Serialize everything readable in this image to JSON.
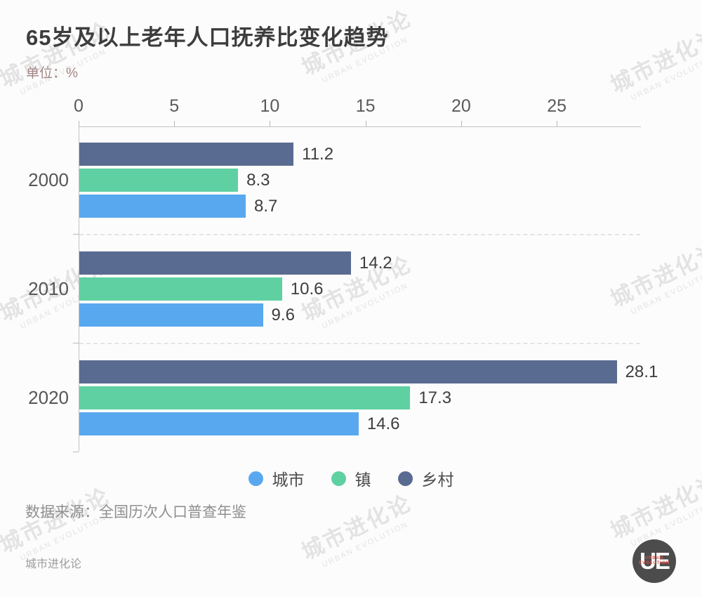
{
  "header": {
    "title": "65岁及以上老年人口抚养比变化趋势",
    "unit_label": "单位：%"
  },
  "chart_data": {
    "type": "bar",
    "orientation": "horizontal",
    "title": "65岁及以上老年人口抚养比变化趋势",
    "unit": "%",
    "categories": [
      "2000",
      "2010",
      "2020"
    ],
    "series": [
      {
        "key": "urban",
        "name": "城市",
        "color": "#58a8ef",
        "values": [
          8.7,
          9.6,
          14.6
        ]
      },
      {
        "key": "town",
        "name": "镇",
        "color": "#5fd0a2",
        "values": [
          8.3,
          10.6,
          17.3
        ]
      },
      {
        "key": "rural",
        "name": "乡村",
        "color": "#5a6b91",
        "values": [
          11.2,
          14.2,
          28.1
        ]
      }
    ],
    "bar_display_order": [
      "rural",
      "town",
      "urban"
    ],
    "x_ticks": [
      0,
      5,
      10,
      15,
      20,
      25
    ],
    "xlim": [
      0,
      29.4
    ],
    "value_labels": true,
    "legend_position": "bottom-center",
    "grid": "dashed-horizontal-separators-between-year-groups"
  },
  "footer": {
    "source": "数据来源：全国历次人口普查年鉴",
    "brand": "城市进化论"
  },
  "watermark": {
    "line1": "城市进化论",
    "line2": "URBAN EVOLUTION"
  },
  "logo": {
    "text": "UE",
    "subtext": "URBAN EVOLUTION"
  }
}
